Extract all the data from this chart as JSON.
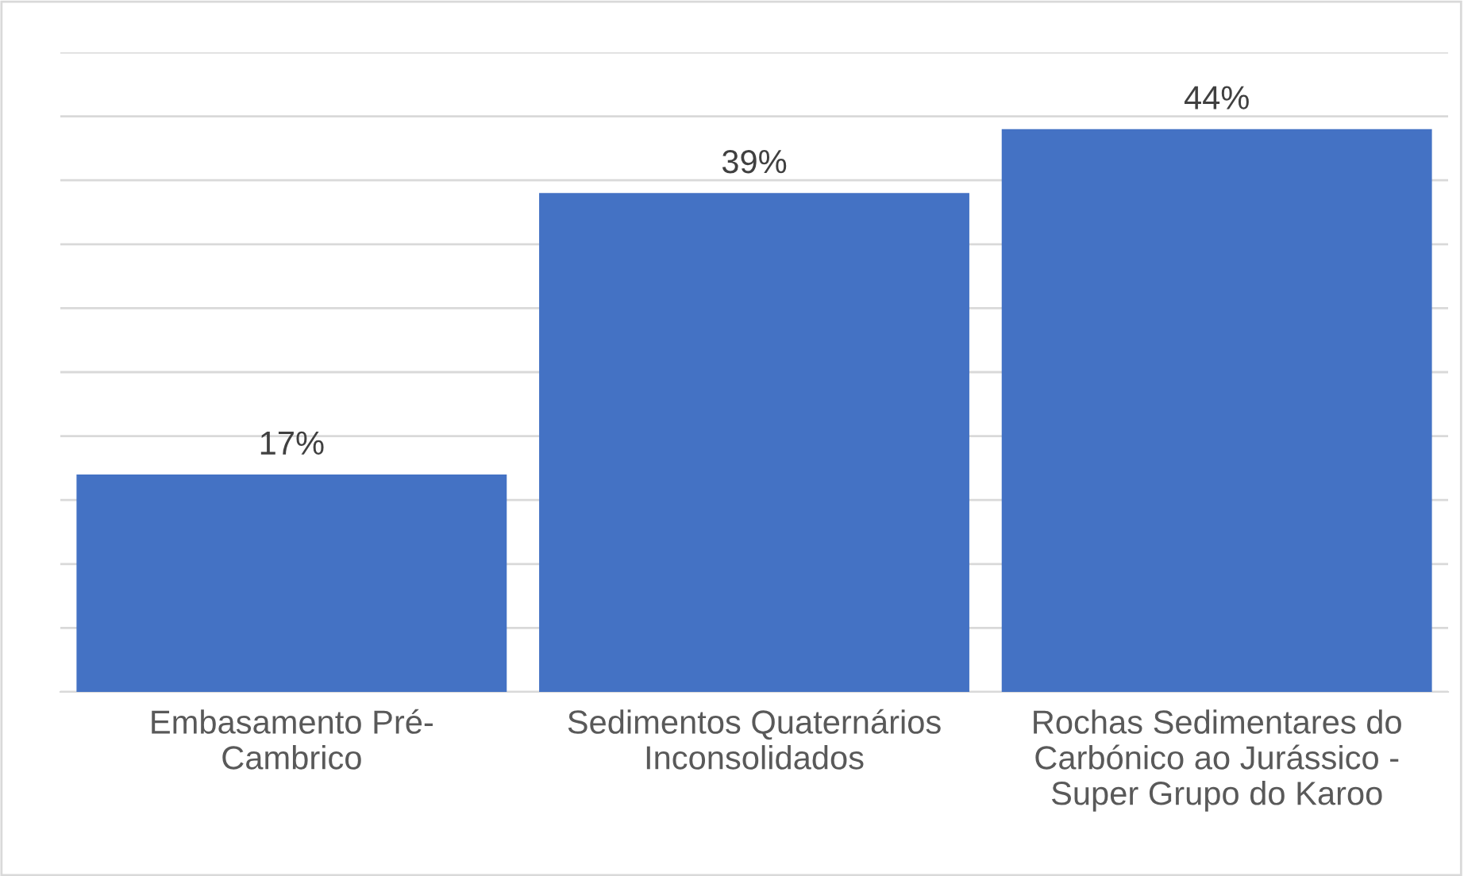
{
  "chart_data": {
    "type": "bar",
    "categories": [
      "Embasamento Pré-\nCambrico",
      "Sedimentos Quaternários\nInconsolidados",
      "Rochas Sedimentares do\nCarbónico ao Jurássico -\nSuper Grupo do Karoo"
    ],
    "values": [
      17,
      39,
      44
    ],
    "value_labels": [
      "17%",
      "39%",
      "44%"
    ],
    "color": "#4472c4",
    "ylim": [
      0,
      50
    ],
    "yticks": [
      {
        "value": 0,
        "label": null
      },
      {
        "value": 5,
        "label": null
      },
      {
        "value": 10,
        "label": null
      },
      {
        "value": 15,
        "label": null
      },
      {
        "value": 20,
        "label": null
      },
      {
        "value": 25,
        "label": null
      },
      {
        "value": 30,
        "label": null
      },
      {
        "value": 35,
        "label": null
      },
      {
        "value": 40,
        "label": null
      },
      {
        "value": 45,
        "label": null
      },
      {
        "value": 50,
        "label": null
      }
    ],
    "grid": "y",
    "tick_labels": "x"
  }
}
